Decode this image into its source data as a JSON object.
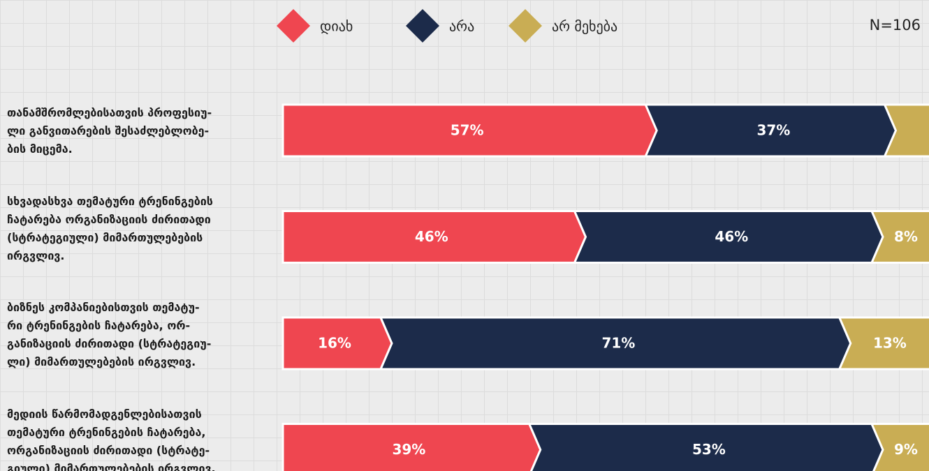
{
  "chart_data": {
    "type": "stacked-bar",
    "sample_size_label": "N=106",
    "categories": [
      "თანამშრომლებისათვის პროფესიუ-\nლი განვითარების შესაძლებლობე-\nბის მიცემა.",
      "სხვადასხვა თემატური ტრენინგების\nჩატარება ორგანიზაციის ძირითადი\n(სტრატეგიული) მიმართულებების\nირგვლივ.",
      "ბიზნეს კომპანიებისთვის თემატუ-\nრი ტრენინგების ჩატარება, ორ-\nგანიზაციის ძირითადი (სტრატეგიუ-\nლი) მიმართულებების ირგვლივ.",
      "მედიის წარმომადგენლებისათვის\nთემატური ტრენინგების ჩატარება,\nორგანიზაციის ძირითადი (სტრატე-\nგიული) მიმართულებების ირგვლივ."
    ],
    "series": [
      {
        "name": "დიახ",
        "color": "#ef4650",
        "values": [
          57,
          46,
          16,
          39
        ],
        "value_labels": [
          "57%",
          "46%",
          "16%",
          "39%"
        ]
      },
      {
        "name": "არა",
        "color": "#1c2b4a",
        "values": [
          37,
          46,
          71,
          53
        ],
        "value_labels": [
          "37%",
          "46%",
          "71%",
          "53%"
        ]
      },
      {
        "name": "არ მეხება",
        "color": "#c9ad54",
        "values": [
          6,
          8,
          13,
          9
        ],
        "value_labels": [
          null,
          "8%",
          "13%",
          "9%"
        ]
      }
    ],
    "xlim": [
      0,
      100
    ]
  }
}
